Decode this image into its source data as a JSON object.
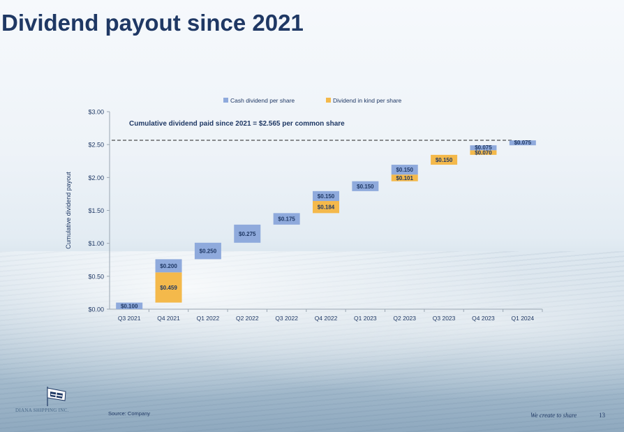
{
  "title": "Dividend payout since 2021",
  "source": "Source: Company",
  "company": "DIANA SHIPPING INC.",
  "tagline": "We create to share",
  "page_number": "13",
  "colors": {
    "title": "#1f3864",
    "cash": "#8faadc",
    "kind": "#f4b94b",
    "axis": "#1f3864"
  },
  "chart_data": {
    "type": "bar",
    "stacked": "waterfall",
    "ylabel": "Cumulative dividend payout",
    "ylim": [
      0,
      3.0
    ],
    "yticks": [
      "$0.00",
      "$0.50",
      "$1.00",
      "$1.50",
      "$2.00",
      "$2.50",
      "$3.00"
    ],
    "ytick_values": [
      0,
      0.5,
      1.0,
      1.5,
      2.0,
      2.5,
      3.0
    ],
    "legend": [
      "Cash dividend per share",
      "Dividend in kind per share"
    ],
    "legend_position": "top",
    "annotation": "Cumulative dividend paid since 2021 = $2.565 per common share",
    "reference_line": 2.565,
    "categories": [
      "Q3 2021",
      "Q4 2021",
      "Q1 2022",
      "Q2 2022",
      "Q3 2022",
      "Q4 2022",
      "Q1 2023",
      "Q2 2023",
      "Q3 2023",
      "Q4 2023",
      "Q1 2024"
    ],
    "series": [
      {
        "name": "Cash dividend per share",
        "values": [
          0.1,
          0.2,
          0.25,
          0.275,
          0.175,
          0.15,
          0.15,
          0.15,
          0,
          0.075,
          0.075
        ],
        "labels": [
          "$0.100",
          "$0.200",
          "$0.250",
          "$0.275",
          "$0.175",
          "$0.150",
          "$0.150",
          "$0.150",
          "",
          "$0.075",
          "$0.075"
        ]
      },
      {
        "name": "Dividend in kind per share",
        "values": [
          0,
          0.459,
          0,
          0,
          0,
          0.184,
          0,
          0.101,
          0.15,
          0.07,
          0
        ],
        "labels": [
          "",
          "$0.459",
          "",
          "",
          "",
          "$0.184",
          "",
          "$0.101",
          "$0.150",
          "$0.070",
          ""
        ]
      }
    ]
  }
}
